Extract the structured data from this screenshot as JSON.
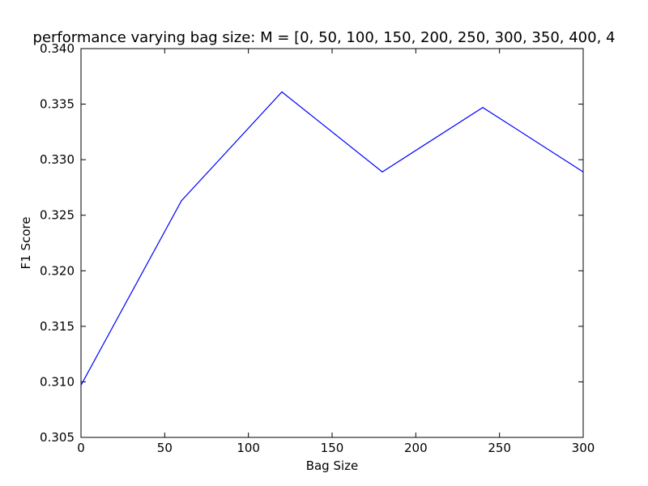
{
  "chart_data": {
    "type": "line",
    "title": "performance varying bag size: M = [0, 50, 100, 150, 200, 250, 300, 350, 400, 4",
    "xlabel": "Bag Size",
    "ylabel": "F1 Score",
    "xlim": [
      0,
      300
    ],
    "ylim": [
      0.305,
      0.34
    ],
    "x_ticks": [
      "0",
      "50",
      "100",
      "150",
      "200",
      "250",
      "300"
    ],
    "y_ticks": [
      "0.305",
      "0.310",
      "0.315",
      "0.320",
      "0.325",
      "0.330",
      "0.335",
      "0.340"
    ],
    "grid": false,
    "series": [
      {
        "color": "#0000ff",
        "x": [
          0,
          60,
          120,
          180,
          240,
          300
        ],
        "y": [
          0.3097,
          0.3263,
          0.3361,
          0.3289,
          0.3347,
          0.3289
        ]
      }
    ]
  }
}
